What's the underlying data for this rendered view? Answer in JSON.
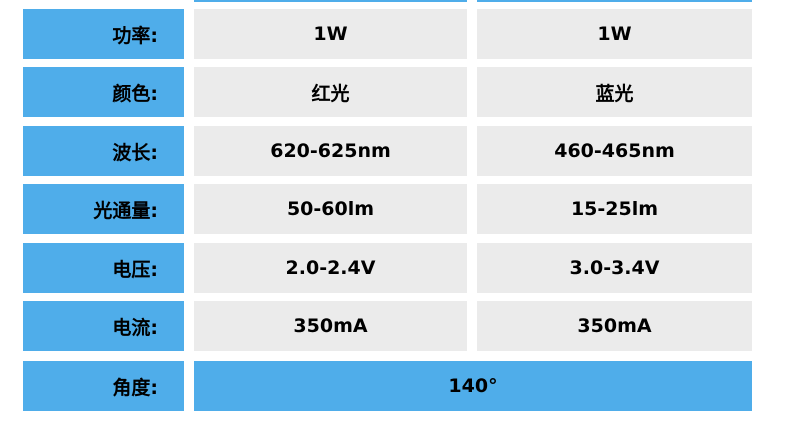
{
  "colors": {
    "accent": "#4fadea",
    "cell": "#ebebeb"
  },
  "rows": [
    {
      "label": "功率:",
      "red": "1W",
      "blue": "1W"
    },
    {
      "label": "颜色:",
      "red": "红光",
      "blue": "蓝光"
    },
    {
      "label": "波长:",
      "red": "620-625nm",
      "blue": "460-465nm"
    },
    {
      "label": "光通量:",
      "red": "50-60lm",
      "blue": "15-25lm"
    },
    {
      "label": "电压:",
      "red": "2.0-2.4V",
      "blue": "3.0-3.4V"
    },
    {
      "label": "电流:",
      "red": "350mA",
      "blue": "350mA"
    }
  ],
  "angle": {
    "label": "角度:",
    "value": "140°"
  }
}
